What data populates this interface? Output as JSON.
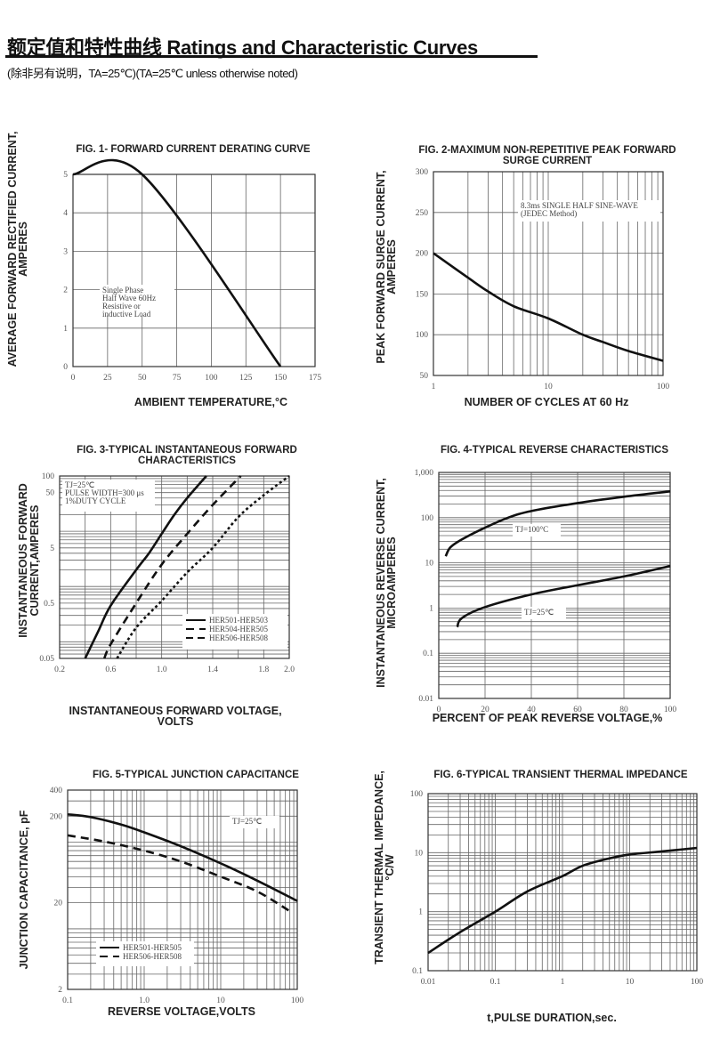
{
  "header": {
    "title": "额定值和特性曲线 Ratings and Characteristic Curves",
    "subtitle": "(除非另有说明，TA=25℃)(TA=25℃  unless otherwise noted)"
  },
  "chart_data": [
    {
      "type": "line",
      "title": [
        "FIG. 1- FORWARD CURRENT DERATING CURVE"
      ],
      "ylabel": [
        "AVERAGE FORWARD RECTIFIED CURRENT,",
        "AMPERES"
      ],
      "xlabel": [
        "AMBIENT TEMPERATURE,°C"
      ],
      "xscale": "linear",
      "yscale": "linear",
      "xlim": [
        0,
        175
      ],
      "ylim": [
        0,
        5
      ],
      "xticks": [
        "0",
        "25",
        "50",
        "75",
        "100",
        "125",
        "150",
        "175"
      ],
      "yticks": [
        "0",
        "1",
        "2",
        "3",
        "4",
        "5"
      ],
      "grid": true,
      "annotations": [
        {
          "lines": [
            "Single Phase",
            "Half Wave 60Hz",
            "Resistive or",
            "inductive Load"
          ]
        }
      ],
      "series": [
        {
          "style": "solid",
          "points": [
            [
              0,
              5
            ],
            [
              50,
              5
            ],
            [
              150,
              0
            ]
          ]
        }
      ]
    },
    {
      "type": "line",
      "title": [
        "FIG. 2-MAXIMUM NON-REPETITIVE PEAK FORWARD",
        "SURGE CURRENT"
      ],
      "ylabel": [
        "PEAK  FORWARD SURGE CURRENT,",
        "AMPERES"
      ],
      "xlabel": [
        "NUMBER OF CYCLES AT 60 Hz"
      ],
      "xscale": "log",
      "yscale": "linear",
      "xlim": [
        1,
        100
      ],
      "ylim": [
        50,
        300
      ],
      "xticks": [
        "1",
        "10",
        "100"
      ],
      "yticks": [
        "50",
        "100",
        "150",
        "200",
        "250",
        "300"
      ],
      "grid": true,
      "annotations": [
        {
          "lines": [
            "8.3ms SINGLE HALF SINE-WAVE",
            "(JEDEC Method)"
          ]
        }
      ],
      "series": [
        {
          "style": "solid",
          "points": [
            [
              1,
              200
            ],
            [
              2,
              170
            ],
            [
              3,
              153
            ],
            [
              5,
              135
            ],
            [
              10,
              120
            ],
            [
              20,
              100
            ],
            [
              30,
              91
            ],
            [
              50,
              80
            ],
            [
              100,
              68
            ]
          ]
        }
      ]
    },
    {
      "type": "line",
      "title": [
        "FIG. 3-TYPICAL INSTANTANEOUS FORWARD",
        "CHARACTERISTICS"
      ],
      "ylabel": [
        "INSTANTANEOUS FORWARD",
        "CURRENT,AMPERES"
      ],
      "xlabel": [
        "INSTANTANEOUS FORWARD VOLTAGE,",
        "VOLTS"
      ],
      "xscale": "linear",
      "yscale": "log",
      "xlim": [
        0.2,
        2.0
      ],
      "ylim": [
        0.05,
        100
      ],
      "xticks": [
        "0.2",
        "0.6",
        "1.0",
        "1.4",
        "1.8",
        "2.0"
      ],
      "yticks": [
        "0.05",
        "0.5",
        "5",
        "50",
        "100"
      ],
      "grid": true,
      "annotations": [
        {
          "lines": [
            "TJ=25℃",
            "PULSE WIDTH=300 μs",
            "1%DUTY CYCLE"
          ]
        }
      ],
      "legend": "bottom-right",
      "series": [
        {
          "name": "HER501-HER503",
          "style": "solid",
          "points": [
            [
              0.4,
              0.05
            ],
            [
              0.5,
              0.15
            ],
            [
              0.6,
              0.45
            ],
            [
              0.8,
              2
            ],
            [
              0.9,
              4
            ],
            [
              1.0,
              9
            ],
            [
              1.1,
              20
            ],
            [
              1.2,
              40
            ],
            [
              1.35,
              100
            ]
          ]
        },
        {
          "name": "HER504-HER505",
          "style": "dashed",
          "points": [
            [
              0.55,
              0.05
            ],
            [
              0.6,
              0.09
            ],
            [
              0.8,
              0.5
            ],
            [
              1.0,
              2.5
            ],
            [
              1.2,
              9
            ],
            [
              1.4,
              30
            ],
            [
              1.62,
              100
            ]
          ]
        },
        {
          "name": "HER506-HER508",
          "style": "dotted",
          "points": [
            [
              0.65,
              0.05
            ],
            [
              0.8,
              0.18
            ],
            [
              1.0,
              0.55
            ],
            [
              1.2,
              1.8
            ],
            [
              1.4,
              5
            ],
            [
              1.6,
              18
            ],
            [
              1.8,
              45
            ],
            [
              2.0,
              100
            ]
          ]
        }
      ]
    },
    {
      "type": "line",
      "title": [
        "FIG. 4-TYPICAL REVERSE CHARACTERISTICS"
      ],
      "ylabel": [
        "INSTANTANEOUS REVERSE CURRENT,",
        "MICROAMPERES"
      ],
      "xlabel": [
        "PERCENT OF PEAK REVERSE VOLTAGE,%"
      ],
      "xscale": "linear",
      "yscale": "log",
      "xlim": [
        0,
        100
      ],
      "ylim": [
        0.01,
        1000
      ],
      "xticks": [
        "0",
        "20",
        "40",
        "60",
        "80",
        "100"
      ],
      "yticks": [
        "0.01",
        "0.1",
        "1",
        "10",
        "100",
        "1,000"
      ],
      "grid": true,
      "annotations": [
        {
          "lines": [
            "TJ=100°C"
          ]
        },
        {
          "lines": [
            "TJ=25℃"
          ]
        }
      ],
      "series": [
        {
          "style": "solid",
          "points": [
            [
              3,
              14
            ],
            [
              5,
              22
            ],
            [
              10,
              33
            ],
            [
              20,
              60
            ],
            [
              30,
              100
            ],
            [
              40,
              140
            ],
            [
              60,
              210
            ],
            [
              80,
              290
            ],
            [
              100,
              380
            ]
          ]
        },
        {
          "style": "solid",
          "points": [
            [
              8,
              0.38
            ],
            [
              10,
              0.6
            ],
            [
              20,
              1.05
            ],
            [
              40,
              2
            ],
            [
              60,
              3.2
            ],
            [
              80,
              5
            ],
            [
              100,
              8.5
            ]
          ]
        }
      ]
    },
    {
      "type": "line",
      "title": [
        "FIG. 5-TYPICAL JUNCTION CAPACITANCE"
      ],
      "ylabel": [
        "JUNCTION CAPACITANCE, pF"
      ],
      "xlabel": [
        "REVERSE VOLTAGE,VOLTS"
      ],
      "xscale": "log",
      "yscale": "log",
      "xlim": [
        0.1,
        100
      ],
      "ylim": [
        2,
        400
      ],
      "xticks": [
        "0.1",
        "1.0",
        "10",
        "100"
      ],
      "yticks": [
        "2",
        "20",
        "200",
        "400"
      ],
      "grid": true,
      "annotations": [
        {
          "lines": [
            "TJ=25℃"
          ]
        }
      ],
      "legend": "bottom-left",
      "series": [
        {
          "name": "HER501-HER505",
          "style": "solid",
          "points": [
            [
              0.1,
              210
            ],
            [
              0.2,
              195
            ],
            [
              0.5,
              160
            ],
            [
              1,
              130
            ],
            [
              3,
              90
            ],
            [
              10,
              57
            ],
            [
              30,
              36
            ],
            [
              100,
              21
            ]
          ]
        },
        {
          "name": "HER506-HER508",
          "style": "dashed",
          "points": [
            [
              0.1,
              120
            ],
            [
              0.3,
              102
            ],
            [
              1,
              80
            ],
            [
              3,
              60
            ],
            [
              10,
              40
            ],
            [
              30,
              27
            ],
            [
              80,
              16
            ]
          ]
        }
      ]
    },
    {
      "type": "line",
      "title": [
        "FIG. 6-TYPICAL TRANSIENT THERMAL IMPEDANCE"
      ],
      "ylabel": [
        "TRANSIENT THERMAL IMPEDANCE,",
        "°C/W"
      ],
      "xlabel": [
        "t,PULSE DURATION,sec."
      ],
      "xscale": "log",
      "yscale": "log",
      "xlim": [
        0.01,
        100
      ],
      "ylim": [
        0.1,
        100
      ],
      "xticks": [
        "0.01",
        "0.1",
        "1",
        "10",
        "100"
      ],
      "yticks": [
        "0.1",
        "1",
        "10",
        "100"
      ],
      "grid": true,
      "series": [
        {
          "style": "solid",
          "points": [
            [
              0.01,
              0.2
            ],
            [
              0.03,
              0.45
            ],
            [
              0.1,
              1.0
            ],
            [
              0.3,
              2.2
            ],
            [
              1,
              4
            ],
            [
              2,
              6
            ],
            [
              5,
              8
            ],
            [
              10,
              9.3
            ],
            [
              30,
              10.5
            ],
            [
              100,
              12
            ]
          ]
        }
      ]
    }
  ]
}
